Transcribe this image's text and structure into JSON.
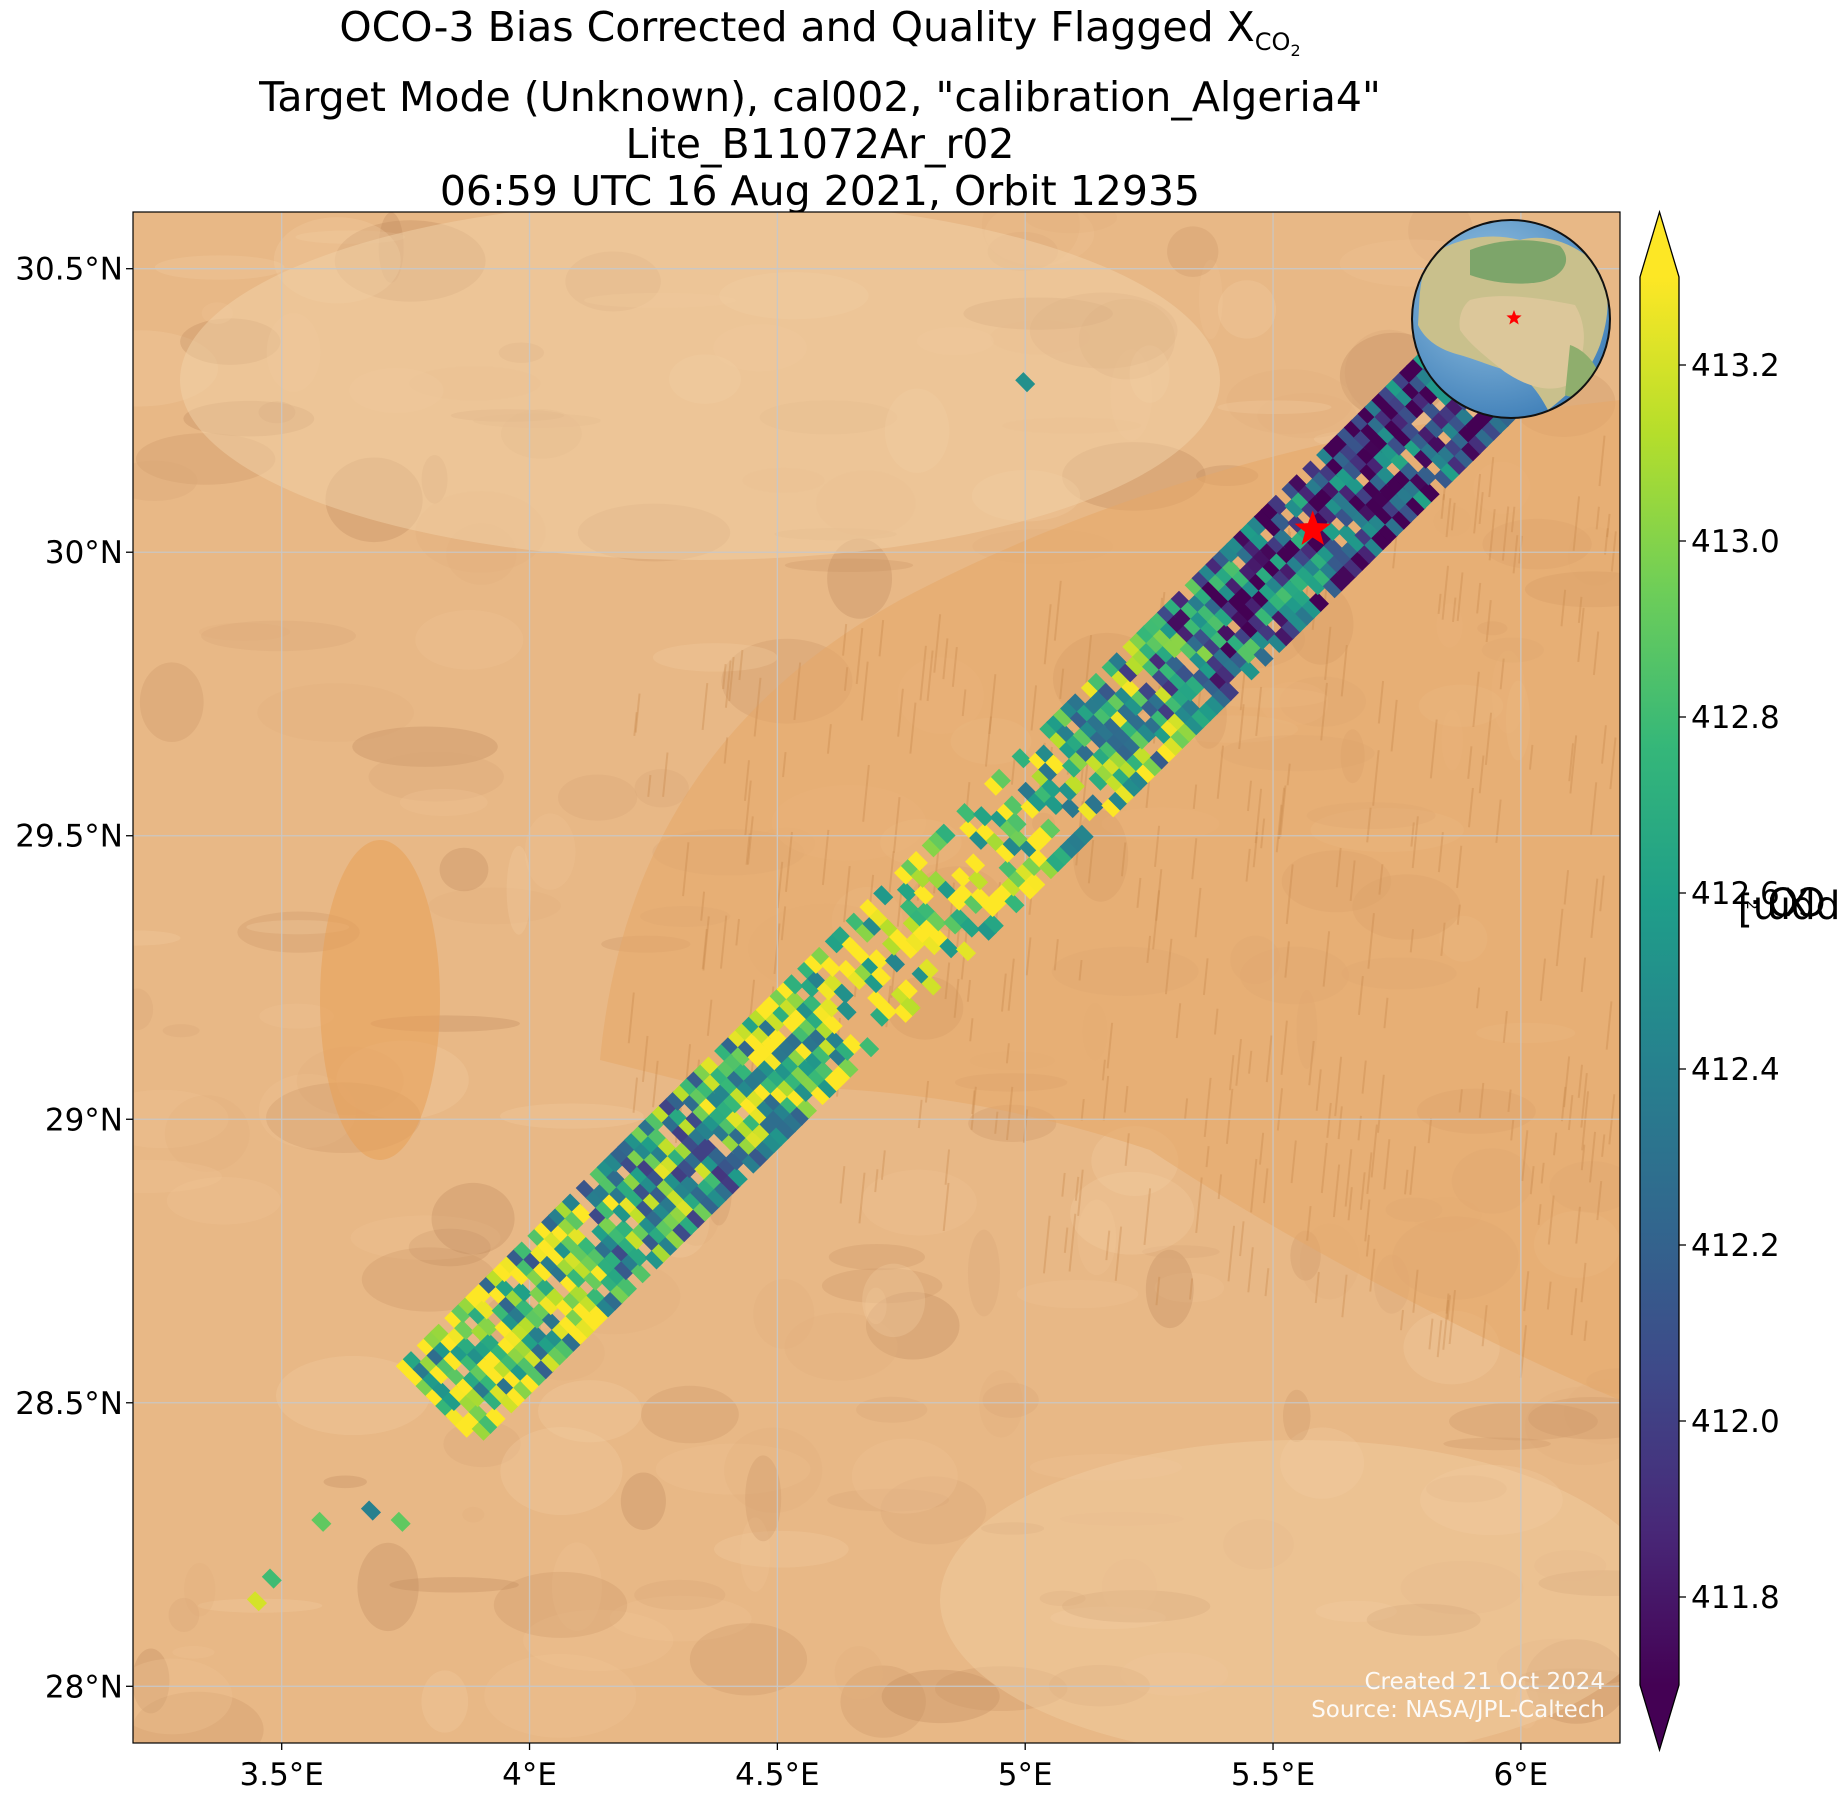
{
  "title": {
    "line1_prefix": "OCO-3 Bias Corrected and Quality Flagged X",
    "line1_sub": "CO",
    "line1_sub2": "2",
    "line2": "Target Mode (Unknown), cal002, \"calibration_Algeria4\"",
    "line3": "Lite_B11072Ar_r02",
    "line4": "06:59 UTC 16 Aug 2021, Orbit 12935"
  },
  "map": {
    "lon_range": [
      3.2,
      6.2
    ],
    "lat_range": [
      27.9,
      30.6
    ],
    "background_color": "#e8b886",
    "grid": true,
    "lon_ticks": [
      {
        "value": 3.5,
        "label": "3.5°E"
      },
      {
        "value": 4.0,
        "label": "4°E"
      },
      {
        "value": 4.5,
        "label": "4.5°E"
      },
      {
        "value": 5.0,
        "label": "5°E"
      },
      {
        "value": 5.5,
        "label": "5.5°E"
      },
      {
        "value": 6.0,
        "label": "6°E"
      }
    ],
    "lat_ticks": [
      {
        "value": 28.0,
        "label": "28°N"
      },
      {
        "value": 28.5,
        "label": "28.5°N"
      },
      {
        "value": 29.0,
        "label": "29°N"
      },
      {
        "value": 29.5,
        "label": "29.5°N"
      },
      {
        "value": 30.0,
        "label": "30°N"
      },
      {
        "value": 30.5,
        "label": "30.5°N"
      }
    ],
    "target": {
      "lon": 5.58,
      "lat": 30.04,
      "color": "#ff0000",
      "icon": "star-icon"
    },
    "swath": {
      "start": {
        "lon": 3.82,
        "lat": 28.5
      },
      "end": {
        "lon": 5.9,
        "lat": 30.3
      },
      "value_profile": [
        {
          "t": 0.0,
          "value": 412.9
        },
        {
          "t": 0.25,
          "value": 412.6
        },
        {
          "t": 0.4,
          "value": 413.05
        },
        {
          "t": 0.52,
          "value": 413.15
        },
        {
          "t": 0.65,
          "value": 412.8
        },
        {
          "t": 0.78,
          "value": 412.2
        },
        {
          "t": 1.0,
          "value": 411.95
        }
      ]
    },
    "isolated_soundings": [
      {
        "lon": 3.45,
        "lat": 28.15,
        "value": 413.2
      },
      {
        "lon": 3.48,
        "lat": 28.19,
        "value": 412.8
      },
      {
        "lon": 3.58,
        "lat": 28.29,
        "value": 412.9
      },
      {
        "lon": 3.68,
        "lat": 28.31,
        "value": 412.4
      },
      {
        "lon": 3.74,
        "lat": 28.29,
        "value": 412.9
      },
      {
        "lon": 5.0,
        "lat": 30.3,
        "value": 412.5
      }
    ],
    "inset_globe": {
      "center_lon": 5.0,
      "center_lat": 30.0,
      "marker_color": "#ff0000"
    }
  },
  "colorbar": {
    "min": 411.7,
    "max": 413.3,
    "ticks": [
      "411.8",
      "412.0",
      "412.2",
      "412.4",
      "412.6",
      "412.8",
      "413.0",
      "413.2"
    ],
    "tick_values": [
      411.8,
      412.0,
      412.2,
      412.4,
      412.6,
      412.8,
      413.0,
      413.2
    ],
    "colormap": "viridis",
    "colors": [
      "#440154",
      "#482878",
      "#3e4989",
      "#31688e",
      "#26828e",
      "#1f9e89",
      "#35b779",
      "#6ece58",
      "#b5de2b",
      "#fde725"
    ],
    "extend": "both",
    "label_prefix": "X",
    "label_sub": "CO",
    "label_sub2": "2",
    "label_suffix": " [ppm]"
  },
  "credit": {
    "created": "Created 21 Oct 2024",
    "source": "Source: NASA/JPL-Caltech"
  }
}
